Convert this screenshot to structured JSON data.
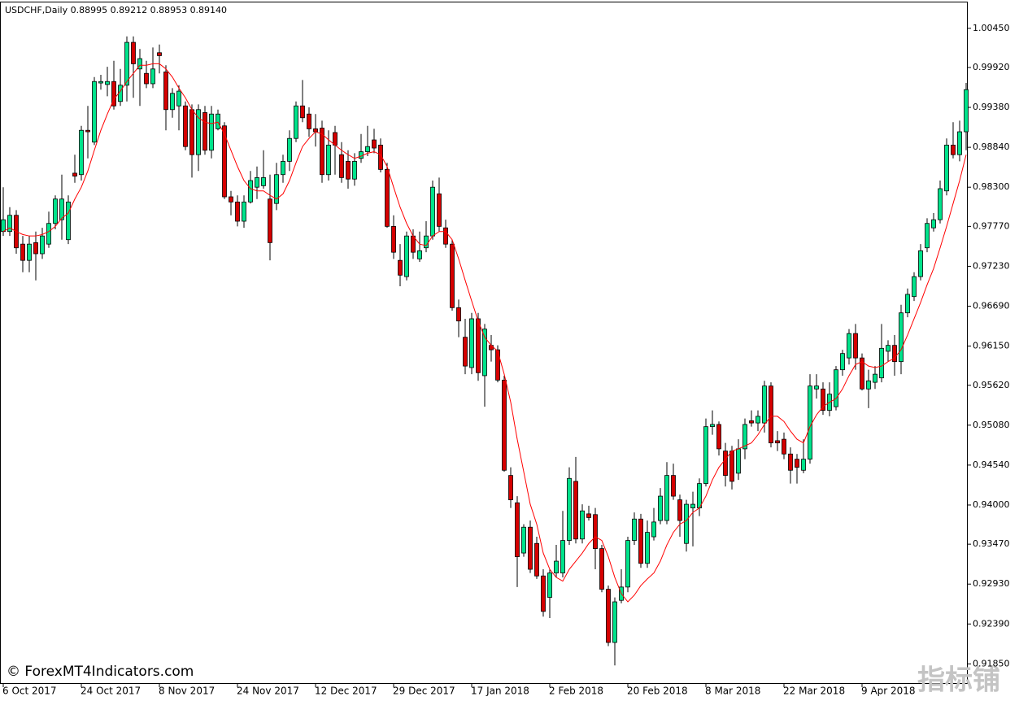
{
  "chart_data": {
    "type": "candlestick",
    "title": "USDCHF,Daily  0.88995 0.89212 0.88953 0.89140",
    "watermark": "© ForexMT4Indicators.com",
    "logo": "指标铺",
    "up_color": "#00e38b",
    "down_color": "#d50000",
    "categories": [
      "6 Oct 2017",
      null,
      null,
      null,
      null,
      null,
      null,
      null,
      null,
      null,
      null,
      null,
      "24 Oct 2017",
      null,
      null,
      null,
      null,
      null,
      null,
      null,
      null,
      null,
      null,
      null,
      "8 Nov 2017",
      null,
      null,
      null,
      null,
      null,
      null,
      null,
      null,
      null,
      null,
      null,
      "24 Nov 2017",
      null,
      null,
      null,
      null,
      null,
      null,
      null,
      null,
      null,
      null,
      null,
      "12 Dec 2017",
      null,
      null,
      null,
      null,
      null,
      null,
      null,
      null,
      null,
      null,
      null,
      "29 Dec 2017",
      null,
      null,
      null,
      null,
      null,
      null,
      null,
      null,
      null,
      null,
      null,
      "17 Jan 2018",
      null,
      null,
      null,
      null,
      null,
      null,
      null,
      null,
      null,
      null,
      null,
      "2 Feb 2018",
      null,
      null,
      null,
      null,
      null,
      null,
      null,
      null,
      null,
      null,
      null,
      "20 Feb 2018",
      null,
      null,
      null,
      null,
      null,
      null,
      null,
      null,
      null,
      null,
      null,
      "8 Mar 2018",
      null,
      null,
      null,
      null,
      null,
      null,
      null,
      null,
      null,
      null,
      null,
      "22 Mar 2018",
      null,
      null,
      null,
      null,
      null,
      null,
      null,
      null,
      null,
      null,
      null,
      "9 Apr 2018",
      null,
      null,
      null,
      null,
      null,
      null,
      null,
      null,
      null,
      null,
      null,
      null,
      null,
      null,
      null,
      null
    ],
    "open": [
      0.977,
      0.977,
      0.9792,
      0.9753,
      0.9731,
      0.9755,
      0.974,
      0.9753,
      0.9781,
      0.9786,
      0.9759,
      0.9849,
      0.9847,
      0.9907,
      0.9891,
      0.9971,
      0.9969,
      0.9973,
      0.9946,
      0.9968,
      1.0026,
      0.999,
      0.9984,
      0.997,
      1.0012,
      0.9986,
      0.9935,
      0.994,
      0.994,
      0.9935,
      0.9874,
      0.9931,
      0.988,
      0.9909,
      0.9913,
      0.9817,
      0.981,
      0.9784,
      0.981,
      0.983,
      0.9832,
      0.9814,
      0.9808,
      0.9847,
      0.9865,
      0.9896,
      0.994,
      0.9929,
      0.9909,
      0.991,
      0.9847,
      0.9904,
      0.9874,
      0.9865,
      0.9841,
      0.9869,
      0.9878,
      0.9894,
      0.9887,
      0.9854,
      0.9777,
      0.9731,
      0.9709,
      0.9764,
      0.9733,
      0.9748,
      0.9764,
      0.9821,
      0.9775,
      0.9753,
      0.9667,
      0.9627,
      0.9586,
      0.9652,
      0.9575,
      0.9616,
      0.961,
      0.9569,
      0.944,
      0.9403,
      0.9335,
      0.937,
      0.9348,
      0.9304,
      0.9275,
      0.9308,
      0.9308,
      0.9352,
      0.9432,
      0.9354,
      0.9388,
      0.9387,
      0.9341,
      0.9286,
      0.9214,
      0.9271,
      0.9289,
      0.9352,
      0.9381,
      0.9321,
      0.9357,
      0.9379,
      0.9379,
      0.944,
      0.9407,
      0.9348,
      0.9396,
      0.9396,
      0.9429,
      0.9506,
      0.9509,
      0.9473,
      0.9473,
      0.9443,
      0.9476,
      0.9514,
      0.9511,
      0.9511,
      0.9561,
      0.9487,
      0.9489,
      0.9469,
      0.9462,
      0.9447,
      0.9462,
      0.9557,
      0.9557,
      0.9528,
      0.9533,
      0.9583,
      0.9599,
      0.9632,
      0.9599,
      0.9557,
      0.9566,
      0.9572,
      0.9608,
      0.9616,
      0.9594,
      0.966,
      0.9682,
      0.9709,
      0.9748,
      0.9775,
      0.9786,
      0.9825,
      0.9887,
      0.9874,
      0.9905
    ],
    "high": [
      0.983,
      0.9803,
      0.9799,
      0.9764,
      0.9764,
      0.977,
      0.9775,
      0.9797,
      0.9819,
      0.9847,
      0.9819,
      0.9874,
      0.9913,
      0.994,
      0.9979,
      0.9982,
      0.9993,
      1.0001,
      0.999,
      1.0034,
      1.0034,
      1.0017,
      1.0001,
      1.0019,
      1.0023,
      0.9995,
      0.9964,
      0.9968,
      0.9946,
      0.9942,
      0.9942,
      0.994,
      0.994,
      0.9935,
      0.9918,
      0.9825,
      0.9819,
      0.9819,
      0.9852,
      0.9858,
      0.988,
      0.9847,
      0.9863,
      0.9874,
      0.9907,
      0.9946,
      0.9975,
      0.9938,
      0.9929,
      0.992,
      0.9907,
      0.9913,
      0.9891,
      0.988,
      0.9876,
      0.9902,
      0.9913,
      0.9909,
      0.9896,
      0.9863,
      0.9792,
      0.9753,
      0.977,
      0.9773,
      0.977,
      0.9784,
      0.9839,
      0.9843,
      0.9786,
      0.9759,
      0.9678,
      0.9652,
      0.966,
      0.966,
      0.9645,
      0.963,
      0.9616,
      0.9575,
      0.9451,
      0.9412,
      0.9374,
      0.9379,
      0.9357,
      0.9313,
      0.9313,
      0.9346,
      0.9392,
      0.9451,
      0.9465,
      0.9401,
      0.9399,
      0.9396,
      0.9346,
      0.9291,
      0.9275,
      0.9313,
      0.9357,
      0.939,
      0.9388,
      0.9379,
      0.9396,
      0.9423,
      0.9458,
      0.9456,
      0.9414,
      0.9407,
      0.9418,
      0.9436,
      0.9517,
      0.9528,
      0.9513,
      0.9484,
      0.948,
      0.9489,
      0.9517,
      0.9528,
      0.9528,
      0.9568,
      0.9566,
      0.95,
      0.9498,
      0.9478,
      0.9469,
      0.9489,
      0.9577,
      0.9577,
      0.9566,
      0.9566,
      0.9588,
      0.961,
      0.9638,
      0.9645,
      0.9605,
      0.9583,
      0.9588,
      0.9645,
      0.9623,
      0.963,
      0.9671,
      0.9693,
      0.9715,
      0.9753,
      0.9788,
      0.9795,
      0.9839,
      0.9896,
      0.9918,
      0.992,
      0.9971
    ],
    "low": [
      0.9764,
      0.9764,
      0.974,
      0.9715,
      0.9715,
      0.9704,
      0.9733,
      0.9748,
      0.9773,
      0.9759,
      0.9753,
      0.9836,
      0.9839,
      0.9869,
      0.9887,
      0.9962,
      0.9953,
      0.9935,
      0.994,
      0.9946,
      0.9951,
      0.994,
      0.9964,
      0.9964,
      0.9984,
      0.9907,
      0.9924,
      0.9907,
      0.988,
      0.9843,
      0.9852,
      0.9874,
      0.9869,
      0.9907,
      0.9814,
      0.9792,
      0.9777,
      0.9775,
      0.9808,
      0.9814,
      0.9828,
      0.9731,
      0.9799,
      0.9836,
      0.9852,
      0.9891,
      0.9918,
      0.9898,
      0.9885,
      0.9836,
      0.9839,
      0.9847,
      0.9836,
      0.9828,
      0.9832,
      0.9863,
      0.9872,
      0.9876,
      0.985,
      0.9775,
      0.9733,
      0.9696,
      0.9704,
      0.9733,
      0.9729,
      0.9742,
      0.9759,
      0.977,
      0.9748,
      0.9663,
      0.9627,
      0.9577,
      0.9577,
      0.9568,
      0.9533,
      0.9594,
      0.9566,
      0.9445,
      0.9396,
      0.9289,
      0.933,
      0.9308,
      0.93,
      0.9249,
      0.9247,
      0.9302,
      0.9302,
      0.9346,
      0.9348,
      0.9348,
      0.9379,
      0.9313,
      0.9282,
      0.9209,
      0.9183,
      0.9267,
      0.9282,
      0.9346,
      0.9315,
      0.9315,
      0.9352,
      0.9374,
      0.9374,
      0.9407,
      0.9357,
      0.9337,
      0.9344,
      0.9385,
      0.9425,
      0.9495,
      0.9467,
      0.9425,
      0.9421,
      0.9434,
      0.9462,
      0.9506,
      0.95,
      0.9498,
      0.9478,
      0.9473,
      0.9462,
      0.9429,
      0.9429,
      0.9443,
      0.9456,
      0.9544,
      0.9522,
      0.952,
      0.9528,
      0.9575,
      0.959,
      0.9583,
      0.9555,
      0.9531,
      0.9557,
      0.9566,
      0.9594,
      0.9575,
      0.9577,
      0.9654,
      0.9676,
      0.9704,
      0.9742,
      0.977,
      0.9781,
      0.9819,
      0.9869,
      0.9865,
      0.988
    ],
    "close": [
      0.9786,
      0.9792,
      0.9748,
      0.9731,
      0.9753,
      0.974,
      0.9764,
      0.9781,
      0.9814,
      0.9814,
      0.981,
      0.9845,
      0.9907,
      0.9905,
      0.9973,
      0.9973,
      0.9973,
      0.994,
      0.9968,
      1.0026,
      0.9997,
      1.0004,
      0.997,
      0.999,
      1.0008,
      0.9935,
      0.9957,
      0.996,
      0.9885,
      0.9874,
      0.9935,
      0.988,
      0.9929,
      0.9929,
      0.9817,
      0.981,
      0.9784,
      0.981,
      0.9839,
      0.9843,
      0.9843,
      0.9755,
      0.9847,
      0.9865,
      0.9896,
      0.994,
      0.9924,
      0.9909,
      0.9905,
      0.9847,
      0.9887,
      0.9887,
      0.9843,
      0.9841,
      0.9865,
      0.9878,
      0.9885,
      0.9883,
      0.9854,
      0.9777,
      0.9742,
      0.9711,
      0.9764,
      0.9742,
      0.9744,
      0.9764,
      0.983,
      0.9777,
      0.9753,
      0.9667,
      0.9649,
      0.9588,
      0.9652,
      0.9579,
      0.9638,
      0.961,
      0.9569,
      0.9447,
      0.9407,
      0.933,
      0.937,
      0.9313,
      0.9304,
      0.9256,
      0.9308,
      0.9324,
      0.9352,
      0.9436,
      0.9354,
      0.9392,
      0.9383,
      0.9341,
      0.9286,
      0.9214,
      0.9269,
      0.9289,
      0.9352,
      0.9381,
      0.9321,
      0.9363,
      0.9377,
      0.9412,
      0.944,
      0.9412,
      0.9379,
      0.9401,
      0.9401,
      0.9429,
      0.9506,
      0.9509,
      0.9476,
      0.944,
      0.9432,
      0.9476,
      0.9509,
      0.9511,
      0.952,
      0.9561,
      0.9484,
      0.9484,
      0.9469,
      0.9447,
      0.9451,
      0.9462,
      0.9561,
      0.9561,
      0.9528,
      0.955,
      0.9583,
      0.9605,
      0.9632,
      0.9599,
      0.9557,
      0.9568,
      0.9577,
      0.9612,
      0.9616,
      0.9594,
      0.966,
      0.9685,
      0.9709,
      0.9744,
      0.9781,
      0.9786,
      0.9828,
      0.9887,
      0.9874,
      0.9905,
      0.9962
    ],
    "ma": {
      "color": "#ff0000",
      "values": [
        0.977,
        0.9775,
        0.977,
        0.9766,
        0.9764,
        0.9764,
        0.9766,
        0.977,
        0.9777,
        0.9788,
        0.9795,
        0.9814,
        0.983,
        0.9852,
        0.988,
        0.9907,
        0.9929,
        0.9949,
        0.996,
        0.9973,
        0.9984,
        0.9995,
        0.9995,
        0.9997,
        0.9997,
        0.999,
        0.9979,
        0.9964,
        0.9951,
        0.9935,
        0.9924,
        0.9918,
        0.9916,
        0.9918,
        0.9902,
        0.988,
        0.9858,
        0.9839,
        0.9828,
        0.9825,
        0.9825,
        0.9819,
        0.9814,
        0.9821,
        0.9839,
        0.9863,
        0.9885,
        0.9896,
        0.9905,
        0.9902,
        0.9894,
        0.9887,
        0.988,
        0.9874,
        0.9869,
        0.9872,
        0.9876,
        0.9878,
        0.9874,
        0.9858,
        0.983,
        0.9803,
        0.9781,
        0.9764,
        0.9753,
        0.9751,
        0.9764,
        0.977,
        0.977,
        0.9759,
        0.9733,
        0.9704,
        0.9676,
        0.9649,
        0.9627,
        0.9616,
        0.9608,
        0.9577,
        0.9539,
        0.9489,
        0.9445,
        0.9401,
        0.9374,
        0.9335,
        0.9313,
        0.9302,
        0.9297,
        0.9313,
        0.9324,
        0.9335,
        0.9348,
        0.9357,
        0.9352,
        0.933,
        0.9302,
        0.928,
        0.9269,
        0.9278,
        0.9291,
        0.93,
        0.9308,
        0.9324,
        0.9346,
        0.9363,
        0.9374,
        0.9379,
        0.939,
        0.9396,
        0.9412,
        0.9434,
        0.9451,
        0.9462,
        0.9473,
        0.9476,
        0.948,
        0.9484,
        0.9495,
        0.9509,
        0.952,
        0.952,
        0.9513,
        0.95,
        0.9489,
        0.9484,
        0.9506,
        0.9522,
        0.9533,
        0.9539,
        0.9544,
        0.9557,
        0.9575,
        0.959,
        0.9594,
        0.9588,
        0.9586,
        0.9588,
        0.9594,
        0.9599,
        0.961,
        0.963,
        0.9652,
        0.9674,
        0.9698,
        0.972,
        0.9748,
        0.9777,
        0.9808,
        0.9839,
        0.9874
      ]
    },
    "ylim": [
      0.9159,
      1.008
    ],
    "yticks": [
      {
        "value": 1.0045,
        "label": "1.00450"
      },
      {
        "value": 0.9992,
        "label": "0.99920"
      },
      {
        "value": 0.9938,
        "label": "0.99380"
      },
      {
        "value": 0.9884,
        "label": "0.98840"
      },
      {
        "value": 0.983,
        "label": "0.98300"
      },
      {
        "value": 0.9777,
        "label": "0.97770"
      },
      {
        "value": 0.9723,
        "label": "0.97230"
      },
      {
        "value": 0.9669,
        "label": "0.96690"
      },
      {
        "value": 0.9615,
        "label": "0.96150"
      },
      {
        "value": 0.9562,
        "label": "0.95620"
      },
      {
        "value": 0.9508,
        "label": "0.95080"
      },
      {
        "value": 0.9454,
        "label": "0.94540"
      },
      {
        "value": 0.94,
        "label": "0.94000"
      },
      {
        "value": 0.9347,
        "label": "0.93470"
      },
      {
        "value": 0.9293,
        "label": "0.92930"
      },
      {
        "value": 0.9239,
        "label": "0.92390"
      },
      {
        "value": 0.9185,
        "label": "0.91850"
      }
    ]
  }
}
